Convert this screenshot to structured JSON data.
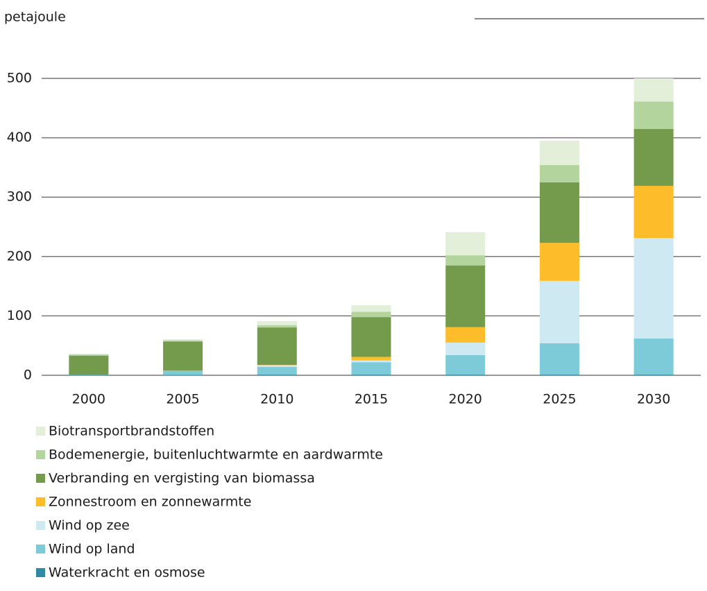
{
  "chart_data": {
    "type": "stacked_bar",
    "y_label": "petajoule",
    "categories": [
      "2000",
      "2005",
      "2010",
      "2015",
      "2020",
      "2025",
      "2030"
    ],
    "series": [
      {
        "name": "Waterkracht en osmose",
        "color": "#2f8ba3",
        "values": [
          0.5,
          0.5,
          1,
          1,
          1,
          1,
          1
        ]
      },
      {
        "name": "Wind op land",
        "color": "#7dcbd9",
        "values": [
          0.5,
          7,
          13,
          21,
          33,
          53,
          61
        ]
      },
      {
        "name": "Wind op zee",
        "color": "#cfe9f3",
        "values": [
          0,
          0,
          3,
          3,
          21,
          105,
          169
        ]
      },
      {
        "name": "Zonnestroom en zonnewarmte",
        "color": "#fdbd2b",
        "values": [
          0,
          0.3,
          0.5,
          6,
          26,
          64,
          88
        ]
      },
      {
        "name": "Verbranding en vergisting van biomassa",
        "color": "#739b4b",
        "values": [
          32,
          49,
          63,
          67,
          104,
          102,
          96
        ]
      },
      {
        "name": "Bodemenergie, buitenluchtwarmte en aardwarmte",
        "color": "#b3d59d",
        "values": [
          2,
          2,
          4,
          9,
          17,
          29,
          46
        ]
      },
      {
        "name": "Biotransportbrandstoffen",
        "color": "#e3efd9",
        "values": [
          1,
          2,
          7,
          11,
          39,
          41,
          39
        ]
      }
    ],
    "ylim": [
      0,
      500
    ],
    "yticks": [
      0,
      100,
      200,
      300,
      400,
      500
    ],
    "grid": true
  }
}
